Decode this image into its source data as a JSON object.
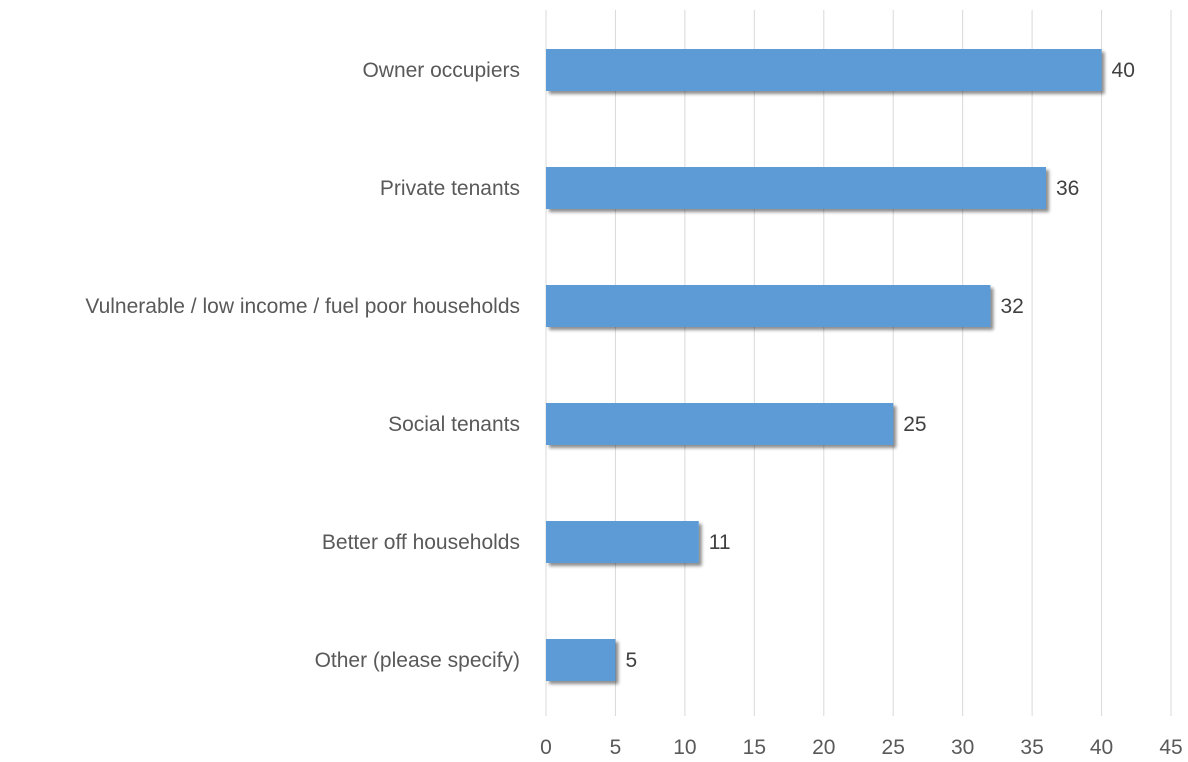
{
  "chart_data": {
    "type": "bar",
    "orientation": "horizontal",
    "title": "",
    "xlabel": "",
    "ylabel": "",
    "categories": [
      "Owner occupiers",
      "Private tenants",
      "Vulnerable / low income / fuel poor households",
      "Social tenants",
      "Better off households",
      "Other (please specify)"
    ],
    "values": [
      40,
      36,
      32,
      25,
      11,
      5
    ],
    "xlim": [
      0,
      45
    ],
    "x_ticks": [
      0,
      5,
      10,
      15,
      20,
      25,
      30,
      35,
      40,
      45
    ],
    "grid": "vertical",
    "legend": "none",
    "data_labels": true,
    "colors": {
      "bar": "#5B9BD5",
      "grid": "#D9D9D9",
      "text": "#595959"
    }
  }
}
